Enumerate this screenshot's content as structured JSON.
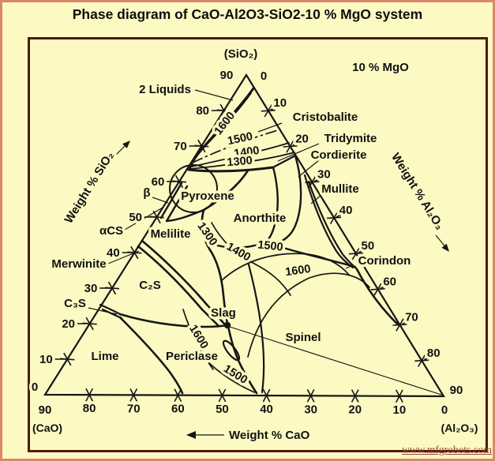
{
  "title": "Phase diagram of CaO-Al2O3-SiO2-10 % MgO system",
  "watermark": "www.mfgrobots.com",
  "corner": {
    "apex_formula": "(SiO₂)",
    "mgo_note": "10 % MgO",
    "cao_formula": "(CaO)",
    "al2o3_formula": "(Al₂O₃)"
  },
  "axes": {
    "left": {
      "label": "Weight % SiO₂",
      "ticks": [
        10,
        20,
        30,
        40,
        50,
        60,
        70,
        80
      ],
      "apex_label": "90",
      "origin_label": "0"
    },
    "right": {
      "label": "Weight % Al₂O₃",
      "ticks": [
        10,
        20,
        30,
        40,
        50,
        60,
        70,
        80
      ],
      "apex_label": "0",
      "vertex_label": "90"
    },
    "bottom": {
      "label": "Weight % CaO",
      "ticks": [
        80,
        70,
        60,
        50,
        40,
        30,
        20,
        10
      ],
      "left_label": "90",
      "right_label": "0"
    }
  },
  "regions": {
    "two_liquids": "2 Liquids",
    "cristobalite": "Cristobalite",
    "tridymite": "Tridymite",
    "cordierite": "Cordierite",
    "mullite": "Mullite",
    "corindon": "Corindon",
    "pyroxene": "Pyroxene",
    "anorthite": "Anorthite",
    "melilite": "Melilite",
    "beta": "β",
    "alpha_cs": "αCS",
    "merwinite": "Merwinite",
    "c2s": "C₂S",
    "c3s": "C₃S",
    "lime": "Lime",
    "periclase": "Periclase",
    "slag": "Slag",
    "spinel": "Spinel"
  },
  "isotherms": {
    "upper_1600": "1600",
    "upper_1500": "1500",
    "upper_1400": "1400",
    "upper_1300": "1300",
    "mid_1300": "1300",
    "mid_1400": "1400",
    "mid_1500": "1500",
    "mid_1600": "1600",
    "low_1600": "1600",
    "low_1500": "1500"
  }
}
